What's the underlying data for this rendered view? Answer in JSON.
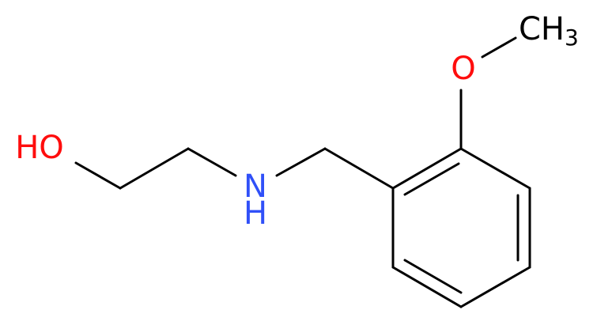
{
  "atoms": {
    "hydroxyl": "HO",
    "amine_n": "N",
    "amine_h": "H",
    "ether_o": "O",
    "methyl": "CH",
    "methyl_subscript": "3"
  }
}
